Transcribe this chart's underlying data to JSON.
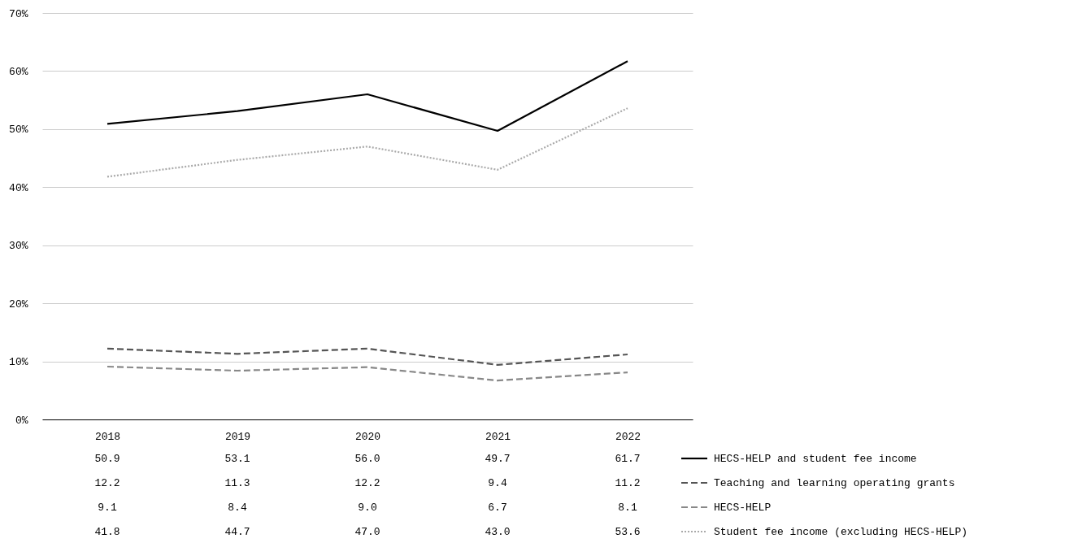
{
  "chart_data": {
    "type": "line",
    "categories": [
      "2018",
      "2019",
      "2020",
      "2021",
      "2022"
    ],
    "series": [
      {
        "name": "HECS-HELP and student fee income",
        "color": "#000000",
        "line_style": "solid",
        "values": [
          50.9,
          53.1,
          56.0,
          49.7,
          61.7
        ],
        "value_labels": [
          "50.9",
          "53.1",
          "56.0",
          "49.7",
          "61.7"
        ]
      },
      {
        "name": "Teaching and learning operating grants",
        "color": "#555555",
        "line_style": "dashed",
        "values": [
          12.2,
          11.3,
          12.2,
          9.4,
          11.2
        ],
        "value_labels": [
          "12.2",
          "11.3",
          "12.2",
          "9.4",
          "11.2"
        ]
      },
      {
        "name": "HECS-HELP",
        "color": "#888888",
        "line_style": "dashed",
        "values": [
          9.1,
          8.4,
          9.0,
          6.7,
          8.1
        ],
        "value_labels": [
          "9.1",
          "8.4",
          "9.0",
          "6.7",
          "8.1"
        ]
      },
      {
        "name": "Student fee income (excluding HECS-HELP)",
        "color": "#aaaaaa",
        "line_style": "dotted",
        "values": [
          41.8,
          44.7,
          47.0,
          43.0,
          53.6
        ],
        "value_labels": [
          "41.8",
          "44.7",
          "47.0",
          "43.0",
          "53.6"
        ]
      }
    ],
    "ylim": [
      0,
      70
    ],
    "yticks": [
      {
        "value": 0,
        "label": "0%"
      },
      {
        "value": 10,
        "label": "10%"
      },
      {
        "value": 20,
        "label": "20%"
      },
      {
        "value": 30,
        "label": "30%"
      },
      {
        "value": 40,
        "label": "40%"
      },
      {
        "value": 50,
        "label": "50%"
      },
      {
        "value": 60,
        "label": "60%"
      },
      {
        "value": 70,
        "label": "70%"
      }
    ],
    "grid": "y",
    "legend": "bottom right",
    "marker": "none"
  }
}
